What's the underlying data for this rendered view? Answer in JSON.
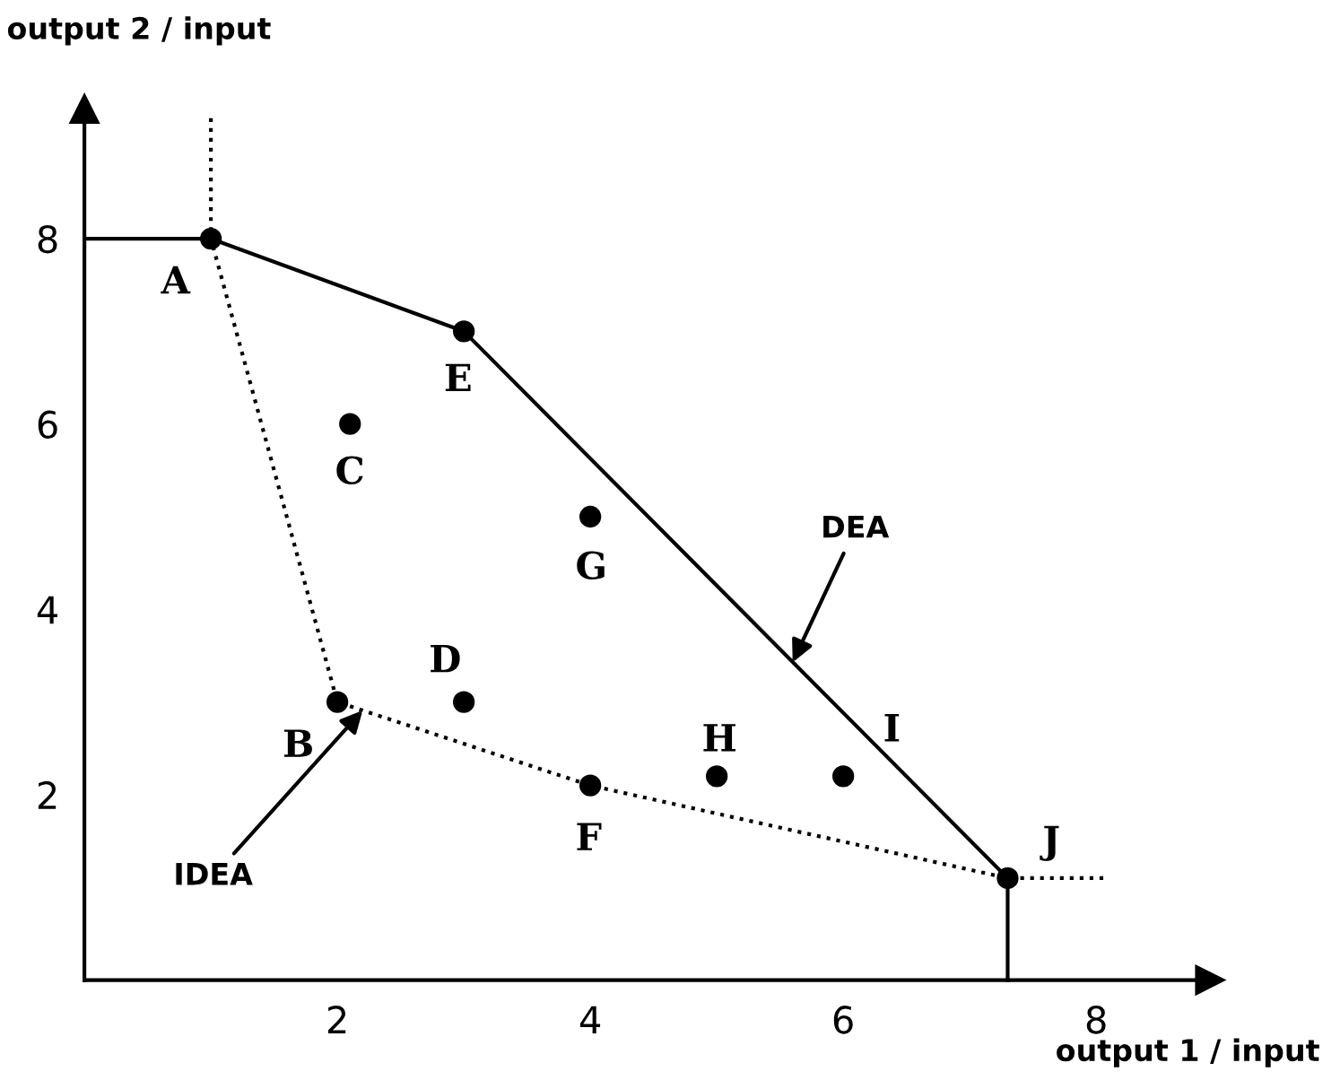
{
  "chart_data": {
    "type": "scatter",
    "xlabel": "output 1 / input",
    "ylabel": "output 2 / input",
    "xlim": [
      0,
      8.9
    ],
    "ylim": [
      0,
      9.4
    ],
    "xticks": [
      2,
      4,
      6,
      8
    ],
    "yticks": [
      2,
      4,
      6,
      8
    ],
    "grid": false,
    "marker": "circle",
    "series": [
      {
        "color": "#000000",
        "x": [
          1,
          3,
          2.1,
          4,
          2,
          3,
          4,
          5,
          6,
          7.3
        ],
        "values": [
          8,
          7,
          6,
          5,
          3,
          3,
          2.1,
          2.2,
          2.2,
          1.1
        ]
      },
      {
        "type": "line",
        "color": "#000000",
        "line_style": "solid",
        "marker": "none",
        "x": [
          0,
          1,
          3,
          7.3,
          7.3
        ],
        "values": [
          8,
          8,
          7,
          1.1,
          0
        ]
      },
      {
        "type": "line",
        "color": "#000000",
        "line_style": "dotted",
        "marker": "none",
        "x": [
          1,
          1,
          2,
          4,
          7.3,
          8.1
        ],
        "values": [
          9.3,
          8,
          3,
          2.1,
          1.1,
          1.1
        ]
      }
    ],
    "annotations": [
      {
        "text": "A",
        "x": 1,
        "y": 8
      },
      {
        "text": "E",
        "x": 3,
        "y": 7
      },
      {
        "text": "C",
        "x": 2.1,
        "y": 6
      },
      {
        "text": "G",
        "x": 4,
        "y": 5
      },
      {
        "text": "B",
        "x": 2,
        "y": 3
      },
      {
        "text": "D",
        "x": 3,
        "y": 3
      },
      {
        "text": "F",
        "x": 4,
        "y": 2.1
      },
      {
        "text": "H",
        "x": 5,
        "y": 2.2
      },
      {
        "text": "I",
        "x": 6,
        "y": 2.2
      },
      {
        "text": "J",
        "x": 7.3,
        "y": 1.1
      },
      {
        "text": "DEA",
        "x": 5.6,
        "y": 3.43
      },
      {
        "text": "IDEA",
        "x": 2.2,
        "y": 2.91
      }
    ]
  }
}
